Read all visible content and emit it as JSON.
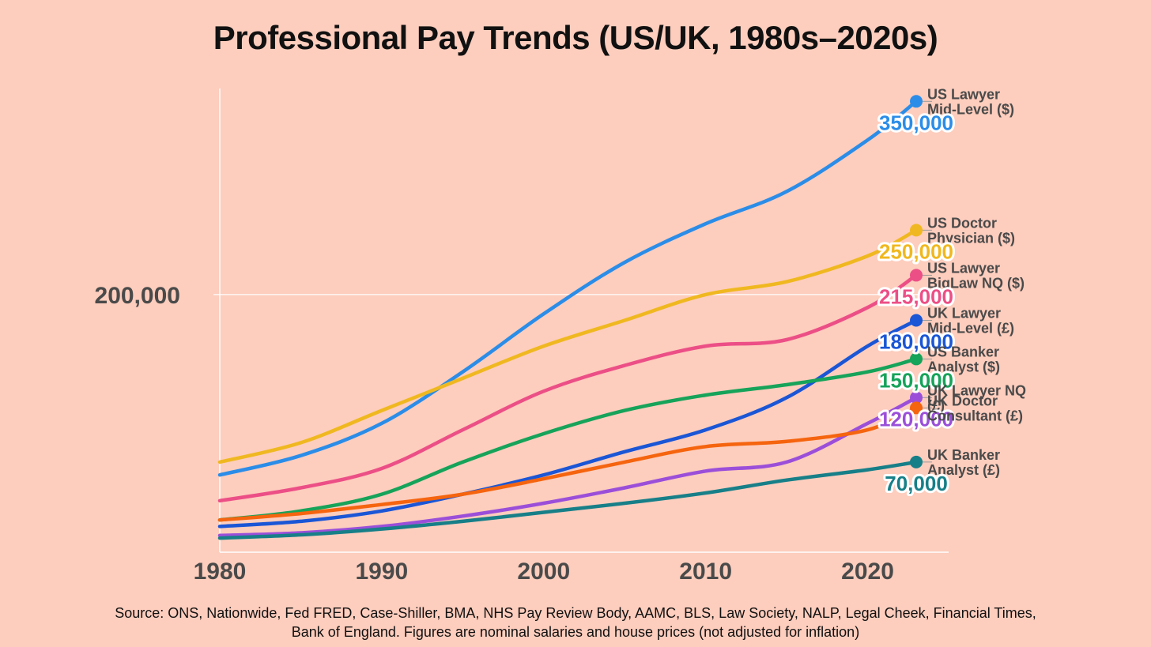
{
  "page": {
    "title": "Professional Pay Trends (US/UK, 1980s–2020s)",
    "source_note": "Source: ONS, Nationwide, Fed FRED, Case-Shiller, BMA, NHS Pay Review Body, AAMC, BLS, Law Society, NALP, Legal Cheek, Financial Times, Bank of England. Figures are nominal salaries and house prices (not adjusted for inflation)"
  },
  "chart_data": {
    "type": "line",
    "title": "Professional Pay Trends (US/UK, 1980s–2020s)",
    "xlabel": "",
    "ylabel": "",
    "xlim": [
      1980,
      2025
    ],
    "ylim": [
      0,
      360000
    ],
    "x_ticks": [
      1980,
      1990,
      2000,
      2010,
      2020
    ],
    "x_tick_labels": [
      "1980",
      "1990",
      "2000",
      "2010",
      "2020"
    ],
    "y_ticks": [
      200000
    ],
    "y_tick_labels": [
      "200,000"
    ],
    "grid": {
      "x": false,
      "y": true
    },
    "legend": "end-of-line labels",
    "series": [
      {
        "name_lines": [
          "US Lawyer",
          "Mid-Level ($)"
        ],
        "color": "#2b8de8",
        "x": [
          1980,
          1985,
          1990,
          1995,
          2000,
          2005,
          2010,
          2015,
          2020,
          2023
        ],
        "y": [
          60000,
          75000,
          100000,
          140000,
          185000,
          225000,
          255000,
          280000,
          320000,
          350000
        ],
        "end_label": "350,000"
      },
      {
        "name_lines": [
          "US Doctor",
          "Physician ($)"
        ],
        "color": "#f0b820",
        "x": [
          1980,
          1985,
          1990,
          1995,
          2000,
          2005,
          2010,
          2015,
          2020,
          2023
        ],
        "y": [
          70000,
          85000,
          110000,
          135000,
          160000,
          180000,
          200000,
          210000,
          230000,
          250000
        ],
        "end_label": "250,000"
      },
      {
        "name_lines": [
          "US Lawyer",
          "BigLaw NQ ($)"
        ],
        "color": "#ec4f86",
        "x": [
          1980,
          1985,
          1990,
          1995,
          2000,
          2005,
          2010,
          2015,
          2020,
          2023
        ],
        "y": [
          40000,
          50000,
          65000,
          95000,
          125000,
          145000,
          160000,
          165000,
          190000,
          215000
        ],
        "end_label": "215,000"
      },
      {
        "name_lines": [
          "UK Lawyer",
          "Mid-Level (£)"
        ],
        "color": "#1a56d6",
        "x": [
          1980,
          1985,
          1990,
          1995,
          2000,
          2005,
          2010,
          2015,
          2020,
          2023
        ],
        "y": [
          20000,
          24000,
          32000,
          45000,
          60000,
          78000,
          95000,
          120000,
          160000,
          180000
        ],
        "end_label": "180,000"
      },
      {
        "name_lines": [
          "US Banker",
          "Analyst ($)"
        ],
        "color": "#16a35a",
        "x": [
          1980,
          1985,
          1990,
          1995,
          2000,
          2005,
          2010,
          2015,
          2020,
          2023
        ],
        "y": [
          25000,
          32000,
          45000,
          70000,
          92000,
          110000,
          122000,
          130000,
          140000,
          150000
        ],
        "end_label": "150,000"
      },
      {
        "name_lines": [
          "UK Lawyer NQ",
          "(£)"
        ],
        "color": "#9b4fd9",
        "x": [
          1980,
          1985,
          1990,
          1995,
          2000,
          2005,
          2010,
          2015,
          2020,
          2023
        ],
        "y": [
          13000,
          15000,
          20000,
          28000,
          38000,
          50000,
          63000,
          70000,
          100000,
          120000
        ],
        "end_label": "120,000"
      },
      {
        "name_lines": [
          "UK Doctor",
          "Consultant (£)"
        ],
        "color": "#f5640e",
        "x": [
          1980,
          1985,
          1990,
          1995,
          2000,
          2005,
          2010,
          2015,
          2020,
          2023
        ],
        "y": [
          25000,
          30000,
          37000,
          45000,
          57000,
          70000,
          82000,
          86000,
          95000,
          112000
        ],
        "end_label": ""
      },
      {
        "name_lines": [
          "UK Banker",
          "Analyst (£)"
        ],
        "color": "#177f88",
        "x": [
          1980,
          1985,
          1990,
          1995,
          2000,
          2005,
          2010,
          2015,
          2020,
          2023
        ],
        "y": [
          11000,
          13500,
          18000,
          24000,
          31000,
          38000,
          46000,
          56000,
          64000,
          70000
        ],
        "end_label": "70,000"
      }
    ]
  }
}
